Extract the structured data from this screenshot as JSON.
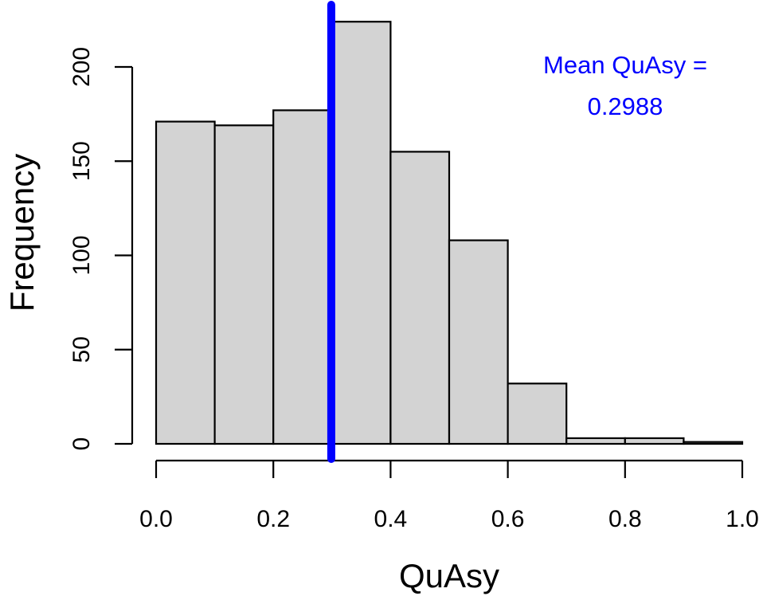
{
  "chart_data": {
    "type": "bar",
    "bins": [
      {
        "x0": 0.0,
        "x1": 0.1,
        "count": 171
      },
      {
        "x0": 0.1,
        "x1": 0.2,
        "count": 169
      },
      {
        "x0": 0.2,
        "x1": 0.3,
        "count": 177
      },
      {
        "x0": 0.3,
        "x1": 0.4,
        "count": 224
      },
      {
        "x0": 0.4,
        "x1": 0.5,
        "count": 155
      },
      {
        "x0": 0.5,
        "x1": 0.6,
        "count": 108
      },
      {
        "x0": 0.6,
        "x1": 0.7,
        "count": 32
      },
      {
        "x0": 0.7,
        "x1": 0.8,
        "count": 3
      },
      {
        "x0": 0.8,
        "x1": 0.9,
        "count": 3
      },
      {
        "x0": 0.9,
        "x1": 1.0,
        "count": 1
      }
    ],
    "xlabel": "QuAsy",
    "ylabel": "Frequency",
    "xlim": [
      0,
      1
    ],
    "ylim": [
      0,
      224
    ],
    "xticks": [
      0.0,
      0.2,
      0.4,
      0.6,
      0.8,
      1.0
    ],
    "xtick_labels": [
      "0.0",
      "0.2",
      "0.4",
      "0.6",
      "0.8",
      "1.0"
    ],
    "yticks": [
      0,
      50,
      100,
      150,
      200
    ],
    "ytick_labels": [
      "0",
      "50",
      "100",
      "150",
      "200"
    ],
    "grid": false,
    "mean_line": {
      "value": 0.2988
    },
    "annotation": {
      "lines": [
        "Mean QuAsy =",
        "0.2988"
      ],
      "placement": "top-right"
    },
    "colors": {
      "bar_fill": "#d3d3d3",
      "bar_stroke": "#000000",
      "mean_line": "#0000ff",
      "annotation": "#0000ff"
    }
  }
}
